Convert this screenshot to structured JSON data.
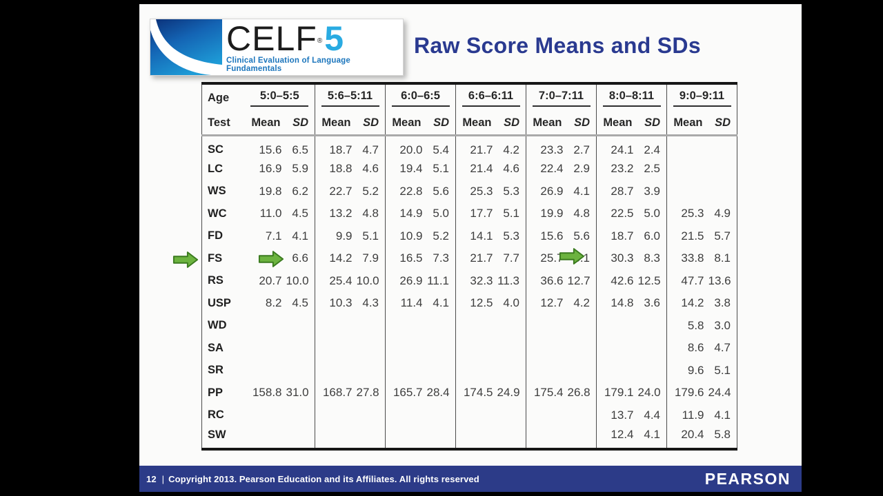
{
  "slide": {
    "logo": {
      "brand": "CELF",
      "registered": "®",
      "edition": "5",
      "tagline": "Clinical Evaluation of Language Fundamentals"
    },
    "title": "Raw Score Means and SDs"
  },
  "table": {
    "age_label": "Age",
    "test_label": "Test",
    "mean_label": "Mean",
    "sd_label": "SD",
    "age_groups": [
      "5:0–5:5",
      "5:6–5:11",
      "6:0–6:5",
      "6:6–6:11",
      "7:0–7:11",
      "8:0–8:11",
      "9:0–9:11"
    ],
    "rows": [
      {
        "test": "SC",
        "values": [
          [
            "15.6",
            "6.5"
          ],
          [
            "18.7",
            "4.7"
          ],
          [
            "20.0",
            "5.4"
          ],
          [
            "21.7",
            "4.2"
          ],
          [
            "23.3",
            "2.7"
          ],
          [
            "24.1",
            "2.4"
          ],
          [
            "",
            ""
          ]
        ]
      },
      {
        "test": "LC",
        "values": [
          [
            "16.9",
            "5.9"
          ],
          [
            "18.8",
            "4.6"
          ],
          [
            "19.4",
            "5.1"
          ],
          [
            "21.4",
            "4.6"
          ],
          [
            "22.4",
            "2.9"
          ],
          [
            "23.2",
            "2.5"
          ],
          [
            "",
            ""
          ]
        ]
      },
      {
        "test": "WS",
        "values": [
          [
            "19.8",
            "6.2"
          ],
          [
            "22.7",
            "5.2"
          ],
          [
            "22.8",
            "5.6"
          ],
          [
            "25.3",
            "5.3"
          ],
          [
            "26.9",
            "4.1"
          ],
          [
            "28.7",
            "3.9"
          ],
          [
            "",
            ""
          ]
        ]
      },
      {
        "test": "WC",
        "values": [
          [
            "11.0",
            "4.5"
          ],
          [
            "13.2",
            "4.8"
          ],
          [
            "14.9",
            "5.0"
          ],
          [
            "17.7",
            "5.1"
          ],
          [
            "19.9",
            "4.8"
          ],
          [
            "22.5",
            "5.0"
          ],
          [
            "25.3",
            "4.9"
          ]
        ]
      },
      {
        "test": "FD",
        "values": [
          [
            "7.1",
            "4.1"
          ],
          [
            "9.9",
            "5.1"
          ],
          [
            "10.9",
            "5.2"
          ],
          [
            "14.1",
            "5.3"
          ],
          [
            "15.6",
            "5.6"
          ],
          [
            "18.7",
            "6.0"
          ],
          [
            "21.5",
            "5.7"
          ]
        ]
      },
      {
        "test": "FS",
        "values": [
          [
            "",
            "6.6"
          ],
          [
            "14.2",
            "7.9"
          ],
          [
            "16.5",
            "7.3"
          ],
          [
            "21.7",
            "7.7"
          ],
          [
            "25.7",
            "8.1"
          ],
          [
            "30.3",
            "8.3"
          ],
          [
            "33.8",
            "8.1"
          ]
        ]
      },
      {
        "test": "RS",
        "values": [
          [
            "20.7",
            "10.0"
          ],
          [
            "25.4",
            "10.0"
          ],
          [
            "26.9",
            "11.1"
          ],
          [
            "32.3",
            "11.3"
          ],
          [
            "36.6",
            "12.7"
          ],
          [
            "42.6",
            "12.5"
          ],
          [
            "47.7",
            "13.6"
          ]
        ]
      },
      {
        "test": "USP",
        "values": [
          [
            "8.2",
            "4.5"
          ],
          [
            "10.3",
            "4.3"
          ],
          [
            "11.4",
            "4.1"
          ],
          [
            "12.5",
            "4.0"
          ],
          [
            "12.7",
            "4.2"
          ],
          [
            "14.8",
            "3.6"
          ],
          [
            "14.2",
            "3.8"
          ]
        ]
      },
      {
        "test": "WD",
        "values": [
          [
            "",
            ""
          ],
          [
            "",
            ""
          ],
          [
            "",
            ""
          ],
          [
            "",
            ""
          ],
          [
            "",
            ""
          ],
          [
            "",
            ""
          ],
          [
            "5.8",
            "3.0"
          ]
        ]
      },
      {
        "test": "SA",
        "values": [
          [
            "",
            ""
          ],
          [
            "",
            ""
          ],
          [
            "",
            ""
          ],
          [
            "",
            ""
          ],
          [
            "",
            ""
          ],
          [
            "",
            ""
          ],
          [
            "8.6",
            "4.7"
          ]
        ]
      },
      {
        "test": "SR",
        "values": [
          [
            "",
            ""
          ],
          [
            "",
            ""
          ],
          [
            "",
            ""
          ],
          [
            "",
            ""
          ],
          [
            "",
            ""
          ],
          [
            "",
            ""
          ],
          [
            "9.6",
            "5.1"
          ]
        ]
      },
      {
        "test": "PP",
        "values": [
          [
            "158.8",
            "31.0"
          ],
          [
            "168.7",
            "27.8"
          ],
          [
            "165.7",
            "28.4"
          ],
          [
            "174.5",
            "24.9"
          ],
          [
            "175.4",
            "26.8"
          ],
          [
            "179.1",
            "24.0"
          ],
          [
            "179.6",
            "24.4"
          ]
        ]
      },
      {
        "test": "RC",
        "values": [
          [
            "",
            ""
          ],
          [
            "",
            ""
          ],
          [
            "",
            ""
          ],
          [
            "",
            ""
          ],
          [
            "",
            ""
          ],
          [
            "13.7",
            "4.4"
          ],
          [
            "11.9",
            "4.1"
          ]
        ]
      },
      {
        "test": "SW",
        "values": [
          [
            "",
            ""
          ],
          [
            "",
            ""
          ],
          [
            "",
            ""
          ],
          [
            "",
            ""
          ],
          [
            "",
            ""
          ],
          [
            "12.4",
            "4.1"
          ],
          [
            "20.4",
            "5.8"
          ]
        ]
      }
    ]
  },
  "annotations": {
    "arrows": [
      {
        "icon": "green-arrow-icon",
        "points_at": "FS row label"
      },
      {
        "icon": "green-arrow-icon",
        "points_at": "FS mean, age 5:0–5:5 (value obscured by arrow)"
      },
      {
        "icon": "green-arrow-icon",
        "points_at": "FS SD, age 7:0–7:11"
      }
    ],
    "arrow_fill": "#6cb33f",
    "arrow_stroke": "#3a7a1e"
  },
  "footer": {
    "page_number": "12",
    "separator": "|",
    "copyright": "Copyright 2013. Pearson Education and its Affiliates. All rights reserved",
    "brand": "PEARSON"
  },
  "colors": {
    "title_navy": "#2a3a90",
    "footer_navy": "#2c3b88",
    "logo_tagline_blue": "#1b75bc",
    "edition_blue": "#29abe2",
    "arrow_green": "#6cb33f"
  }
}
